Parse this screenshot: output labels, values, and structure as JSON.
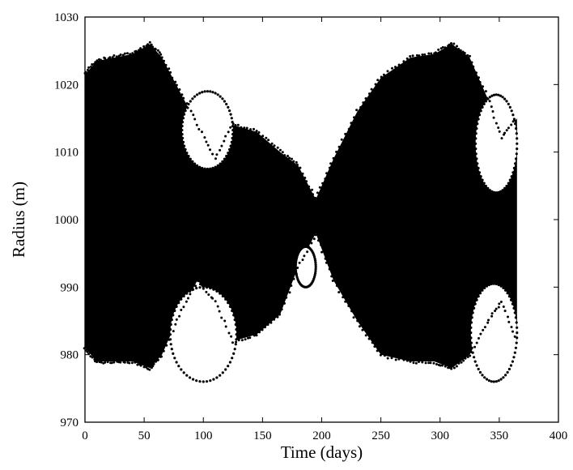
{
  "chart_data": {
    "type": "scatter",
    "title": "",
    "xlabel": "Time (days)",
    "ylabel": "Radius (m)",
    "xlim": [
      0,
      400
    ],
    "ylim": [
      970,
      1030
    ],
    "xticks": [
      0,
      50,
      100,
      150,
      200,
      250,
      300,
      350,
      400
    ],
    "yticks": [
      970,
      980,
      990,
      1000,
      1010,
      1020,
      1030
    ],
    "grid": false,
    "legend": "none",
    "series": [
      {
        "color": "#000000",
        "marker": "dense dots",
        "time_range": [
          0,
          365
        ],
        "envelope_upper": [
          [
            0,
            1021.5
          ],
          [
            10,
            1023.5
          ],
          [
            25,
            1024
          ],
          [
            40,
            1024.5
          ],
          [
            55,
            1026
          ],
          [
            65,
            1024
          ],
          [
            80,
            1019
          ],
          [
            95,
            1014
          ],
          [
            110,
            1009
          ],
          [
            125,
            1014
          ],
          [
            145,
            1013
          ],
          [
            165,
            1010
          ],
          [
            180,
            1008
          ],
          [
            195,
            1003
          ],
          [
            210,
            1009
          ],
          [
            230,
            1016
          ],
          [
            250,
            1021
          ],
          [
            275,
            1024
          ],
          [
            295,
            1024.5
          ],
          [
            310,
            1026
          ],
          [
            325,
            1024
          ],
          [
            340,
            1018
          ],
          [
            352,
            1012
          ],
          [
            365,
            1015
          ]
        ],
        "envelope_lower": [
          [
            0,
            981
          ],
          [
            10,
            979
          ],
          [
            25,
            979
          ],
          [
            40,
            979
          ],
          [
            55,
            978
          ],
          [
            65,
            980
          ],
          [
            80,
            986
          ],
          [
            95,
            991
          ],
          [
            110,
            988
          ],
          [
            125,
            982
          ],
          [
            145,
            983
          ],
          [
            165,
            986
          ],
          [
            180,
            993
          ],
          [
            195,
            998
          ],
          [
            210,
            991
          ],
          [
            230,
            985
          ],
          [
            250,
            980
          ],
          [
            275,
            979
          ],
          [
            295,
            979
          ],
          [
            310,
            978
          ],
          [
            325,
            980
          ],
          [
            340,
            985
          ],
          [
            352,
            988
          ],
          [
            365,
            982
          ]
        ],
        "gaps": [
          {
            "time": [
              82,
              125
            ],
            "radius": [
              1007.5,
              1019
            ]
          },
          {
            "time": [
              72,
              128
            ],
            "radius": [
              976,
              990
            ]
          },
          {
            "time": [
              330,
              365
            ],
            "radius": [
              1004,
              1018.5
            ]
          },
          {
            "time": [
              326,
              365
            ],
            "radius": [
              976,
              990.5
            ]
          },
          {
            "time": [
              178,
              195
            ],
            "radius": [
              990,
              996
            ]
          }
        ]
      }
    ]
  }
}
